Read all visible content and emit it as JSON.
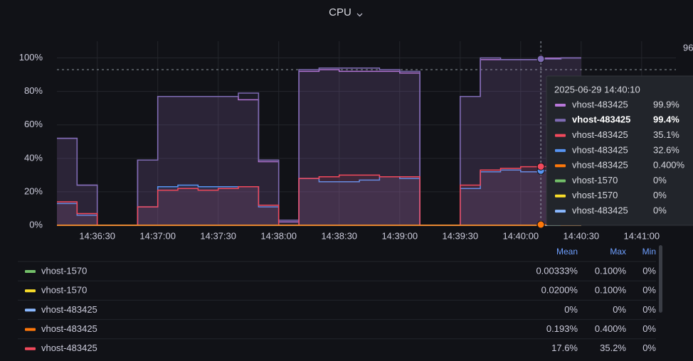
{
  "chart_data": {
    "type": "step-line",
    "title": "CPU",
    "x": [
      "14:36:10",
      "14:36:20",
      "14:36:30",
      "14:36:40",
      "14:36:50",
      "14:37:00",
      "14:37:10",
      "14:37:20",
      "14:37:30",
      "14:37:40",
      "14:37:50",
      "14:38:00",
      "14:38:10",
      "14:38:20",
      "14:38:30",
      "14:38:40",
      "14:38:50",
      "14:39:00",
      "14:39:10",
      "14:39:20",
      "14:39:30",
      "14:39:40",
      "14:39:50",
      "14:40:00",
      "14:40:10",
      "14:40:20",
      "14:40:30"
    ],
    "xlim": [
      "14:36:10",
      "14:41:17"
    ],
    "xticks": [
      "14:36:30",
      "14:37:00",
      "14:37:30",
      "14:38:00",
      "14:38:30",
      "14:39:00",
      "14:39:30",
      "14:40:00",
      "14:40:30",
      "14:41:00"
    ],
    "ylim": [
      0,
      110
    ],
    "yticks": [
      {
        "value": 0,
        "label": "0%"
      },
      {
        "value": 20,
        "label": "20%"
      },
      {
        "value": 40,
        "label": "40%"
      },
      {
        "value": 60,
        "label": "60%"
      },
      {
        "value": 80,
        "label": "80%"
      },
      {
        "value": 100,
        "label": "100%"
      }
    ],
    "threshold": 93,
    "hover_x": "14:40:10",
    "series": [
      {
        "name": "vhost-483425",
        "color": "#b877d9",
        "values": [
          52,
          24,
          0,
          0,
          39,
          77,
          77,
          77,
          77,
          75,
          38,
          2,
          92,
          93,
          92,
          92,
          92,
          91,
          0,
          0,
          77,
          99,
          99,
          99,
          99.9,
          100,
          100
        ]
      },
      {
        "name": "vhost-483425",
        "color": "#7e6bb3",
        "values": [
          52,
          24,
          0,
          0,
          39,
          77,
          77,
          77,
          77,
          79,
          39,
          3,
          93,
          94,
          94,
          94,
          93,
          92,
          0,
          0,
          77,
          100,
          99,
          99,
          99.4,
          100,
          100
        ]
      },
      {
        "name": "vhost-483425",
        "color": "#5794f2",
        "values": [
          13,
          6,
          0,
          0,
          11,
          23,
          24,
          23,
          23,
          23,
          11,
          0,
          28,
          26,
          26,
          27,
          29,
          28,
          0,
          0,
          22,
          32,
          33,
          32,
          32.6,
          32,
          32
        ]
      },
      {
        "name": "vhost-483425",
        "color": "#f2495c",
        "values": [
          14,
          7,
          0,
          0,
          11,
          21,
          22,
          21,
          22,
          23,
          12,
          0,
          28,
          29,
          30,
          30,
          29,
          29,
          0,
          0,
          24,
          33,
          34,
          35,
          35.1,
          35,
          35
        ]
      },
      {
        "name": "vhost-1570",
        "color": "#73bf69",
        "values": [
          0,
          0,
          0,
          0,
          0,
          0,
          0,
          0,
          0,
          0,
          0,
          0,
          0,
          0,
          0,
          0,
          0,
          0,
          0,
          0,
          0,
          0,
          0,
          0,
          0,
          0,
          0
        ]
      },
      {
        "name": "vhost-1570",
        "color": "#fade2a",
        "values": [
          0,
          0,
          0,
          0,
          0,
          0,
          0,
          0,
          0,
          0,
          0,
          0,
          0,
          0,
          0,
          0,
          0,
          0,
          0,
          0,
          0,
          0,
          0,
          0,
          0,
          0,
          0
        ]
      },
      {
        "name": "vhost-483425",
        "color": "#8ab8ff",
        "values": [
          0,
          0,
          0,
          0,
          0,
          0,
          0,
          0,
          0,
          0,
          0,
          0,
          0,
          0,
          0,
          0,
          0,
          0,
          0,
          0,
          0,
          0,
          0,
          0,
          0,
          0,
          0
        ]
      },
      {
        "name": "vhost-483425",
        "color": "#ff780a",
        "values": [
          0,
          0,
          0,
          0,
          0,
          0,
          0,
          0,
          0,
          0,
          0,
          0,
          0,
          0,
          0,
          0,
          0,
          0,
          0,
          0,
          0,
          0,
          0,
          0,
          0.4,
          0,
          0
        ]
      }
    ],
    "tooltip": {
      "time": "2025-06-29 14:40:10",
      "rows": [
        {
          "name": "vhost-483425",
          "value": "99.9%",
          "color": "#b877d9"
        },
        {
          "name": "vhost-483425",
          "value": "99.4%",
          "color": "#7e6bb3"
        },
        {
          "name": "vhost-483425",
          "value": "35.1%",
          "color": "#f2495c"
        },
        {
          "name": "vhost-483425",
          "value": "32.6%",
          "color": "#5794f2"
        },
        {
          "name": "vhost-483425",
          "value": "0.400%",
          "color": "#ff780a"
        },
        {
          "name": "vhost-1570",
          "value": "0%",
          "color": "#73bf69"
        },
        {
          "name": "vhost-1570",
          "value": "0%",
          "color": "#fade2a"
        },
        {
          "name": "vhost-483425",
          "value": "0%",
          "color": "#8ab8ff"
        }
      ]
    },
    "legend": {
      "columns": [
        "Mean",
        "Max",
        "Min"
      ],
      "rows": [
        {
          "name": "vhost-1570",
          "color": "#73bf69",
          "cells": [
            "0.00333%",
            "0.100%",
            "0%"
          ]
        },
        {
          "name": "vhost-1570",
          "color": "#fade2a",
          "cells": [
            "0.0200%",
            "0.100%",
            "0%"
          ]
        },
        {
          "name": "vhost-483425",
          "color": "#8ab8ff",
          "cells": [
            "0%",
            "0%",
            "0%"
          ]
        },
        {
          "name": "vhost-483425",
          "color": "#ff780a",
          "cells": [
            "0.193%",
            "0.400%",
            "0%"
          ]
        },
        {
          "name": "vhost-483425",
          "color": "#f2495c",
          "cells": [
            "17.6%",
            "35.2%",
            "0%"
          ]
        }
      ]
    },
    "side_label": "96"
  }
}
